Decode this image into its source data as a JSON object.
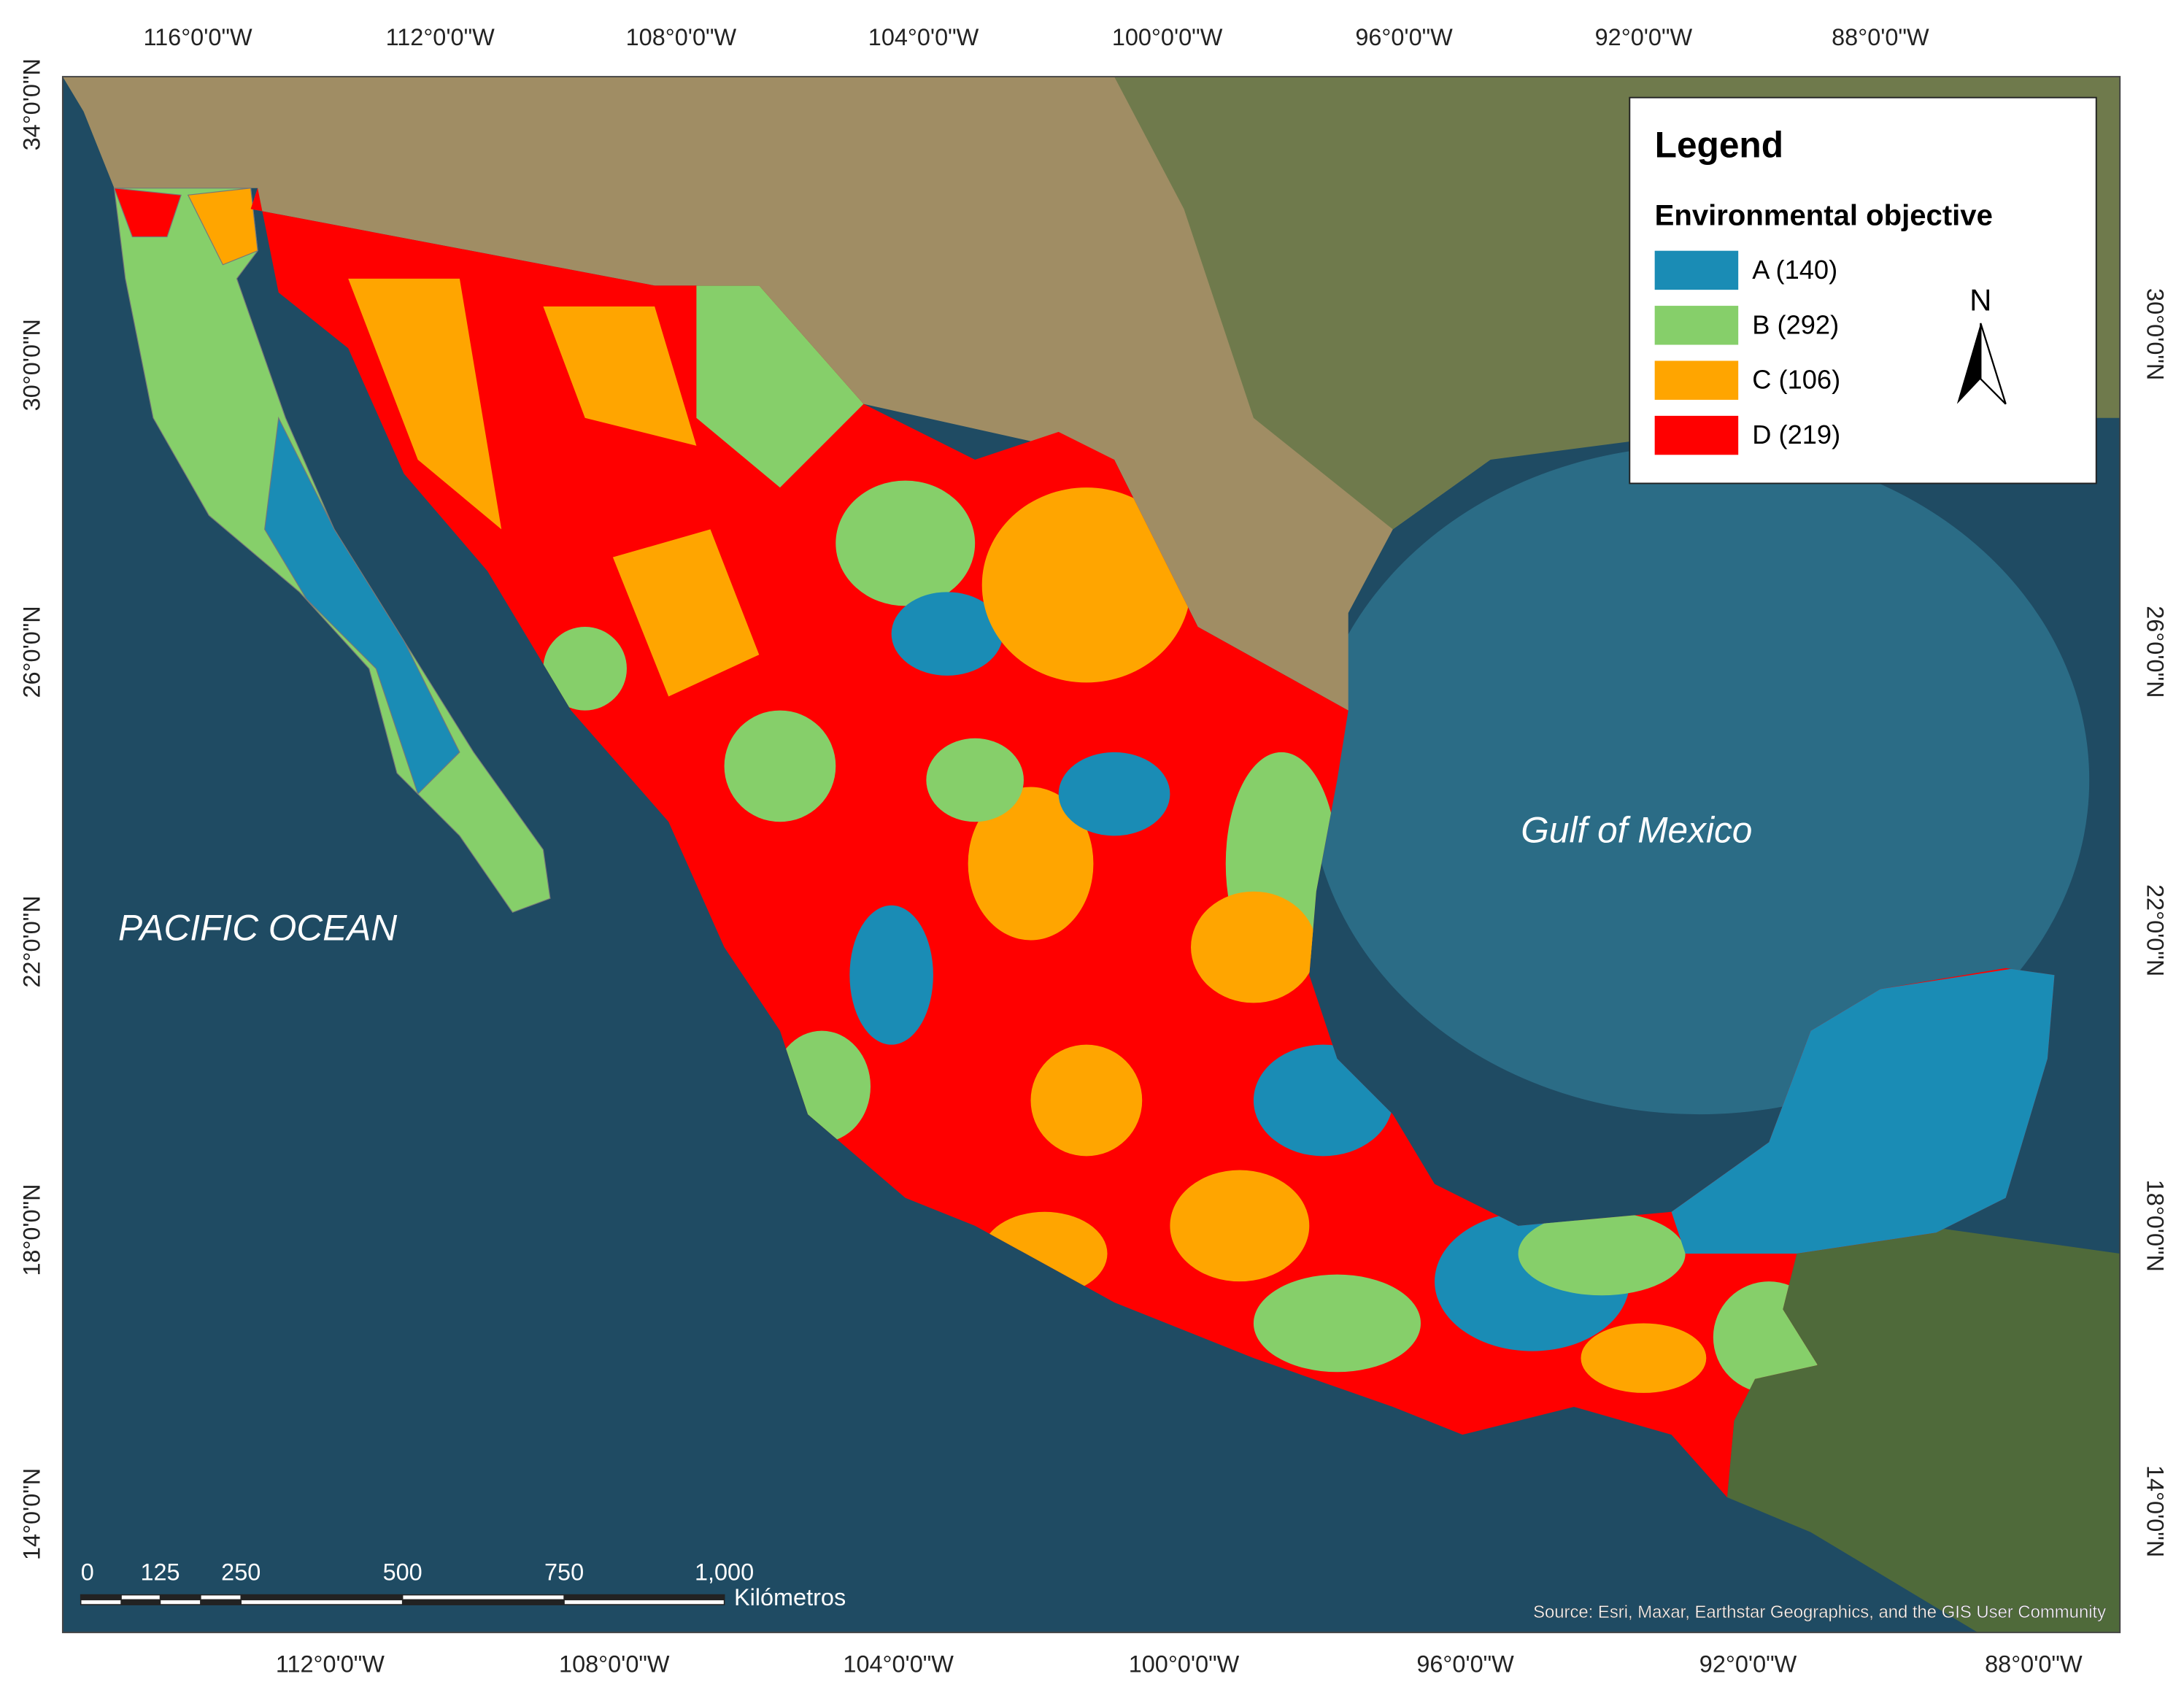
{
  "graticule": {
    "top": [
      "116°0'0\"W",
      "112°0'0\"W",
      "108°0'0\"W",
      "104°0'0\"W",
      "100°0'0\"W",
      "96°0'0\"W",
      "92°0'0\"W",
      "88°0'0\"W"
    ],
    "bottom": [
      "112°0'0\"W",
      "108°0'0\"W",
      "104°0'0\"W",
      "100°0'0\"W",
      "96°0'0\"W",
      "92°0'0\"W",
      "88°0'0\"W"
    ],
    "left": [
      "34°0'0\"N",
      "30°0'0\"N",
      "26°0'0\"N",
      "22°0'0\"N",
      "18°0'0\"N",
      "14°0'0\"N"
    ],
    "right": [
      "30°0'0\"N",
      "26°0'0\"N",
      "22°0'0\"N",
      "18°0'0\"N",
      "14°0'0\"N"
    ]
  },
  "legend": {
    "title": "Legend",
    "subtitle": "Environmental objective",
    "items": [
      {
        "label": "A (140)",
        "color": "#1a8cb5"
      },
      {
        "label": "B (292)",
        "color": "#86cf6a"
      },
      {
        "label": "C (106)",
        "color": "#ffa500"
      },
      {
        "label": "D (219)",
        "color": "#ff0000"
      }
    ]
  },
  "north_arrow": "N",
  "labels": {
    "pacific": "PACIFIC OCEAN",
    "gulf": "Gulf of Mexico"
  },
  "scale_bar": {
    "ticks": [
      "0",
      "125",
      "250",
      "500",
      "750",
      "1,000"
    ],
    "unit": "Kilómetros"
  },
  "source": "Source: Esri, Maxar, Earthstar Geographics, and the GIS User Community"
}
